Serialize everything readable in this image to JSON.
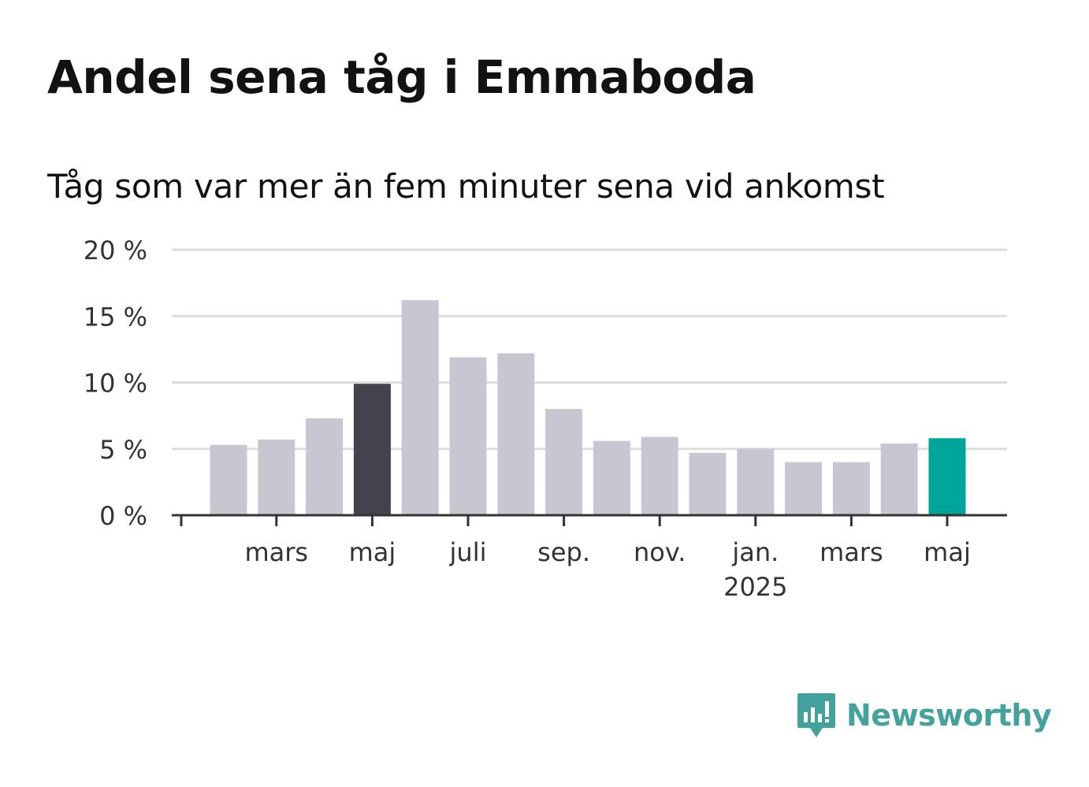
{
  "title": "Andel sena tåg i Emmaboda",
  "subtitle": "Tåg som var mer än fem minuter sena vid ankomst",
  "brand": {
    "name": "Newsworthy",
    "color": "#43a29b",
    "icon": "newsworthy-logo-icon"
  },
  "colors": {
    "default": "#c8c7d1",
    "highlight": "#43424d",
    "latest": "#00a59a",
    "axis": "#333333",
    "grid": "#dddddd"
  },
  "chart_data": {
    "type": "bar",
    "categories": [
      "2024-02",
      "2024-03",
      "2024-04",
      "2024-05",
      "2024-06",
      "2024-07",
      "2024-08",
      "2024-09",
      "2024-10",
      "2024-11",
      "2024-12",
      "2025-01",
      "2025-02",
      "2025-03",
      "2025-04",
      "2025-05"
    ],
    "values": [
      5.3,
      5.7,
      7.3,
      9.9,
      16.2,
      11.9,
      12.2,
      8.0,
      5.6,
      5.9,
      4.7,
      5.0,
      4.0,
      4.0,
      5.4,
      5.8
    ],
    "highlight": {
      "2024-05": "highlight",
      "2025-05": "latest"
    },
    "ylim": [
      0,
      20
    ],
    "yticks": [
      0,
      5,
      10,
      15,
      20
    ],
    "ytick_labels": [
      "0 %",
      "5 %",
      "10 %",
      "15 %",
      "20 %"
    ],
    "xticks": [
      {
        "category": "2024-03",
        "label": "mars",
        "sublabel": ""
      },
      {
        "category": "2024-05",
        "label": "maj",
        "sublabel": ""
      },
      {
        "category": "2024-07",
        "label": "juli",
        "sublabel": ""
      },
      {
        "category": "2024-09",
        "label": "sep.",
        "sublabel": ""
      },
      {
        "category": "2024-11",
        "label": "nov.",
        "sublabel": ""
      },
      {
        "category": "2025-01",
        "label": "jan.",
        "sublabel": "2025"
      },
      {
        "category": "2025-03",
        "label": "mars",
        "sublabel": ""
      },
      {
        "category": "2025-05",
        "label": "maj",
        "sublabel": ""
      }
    ],
    "grid": true,
    "legend": "none"
  }
}
